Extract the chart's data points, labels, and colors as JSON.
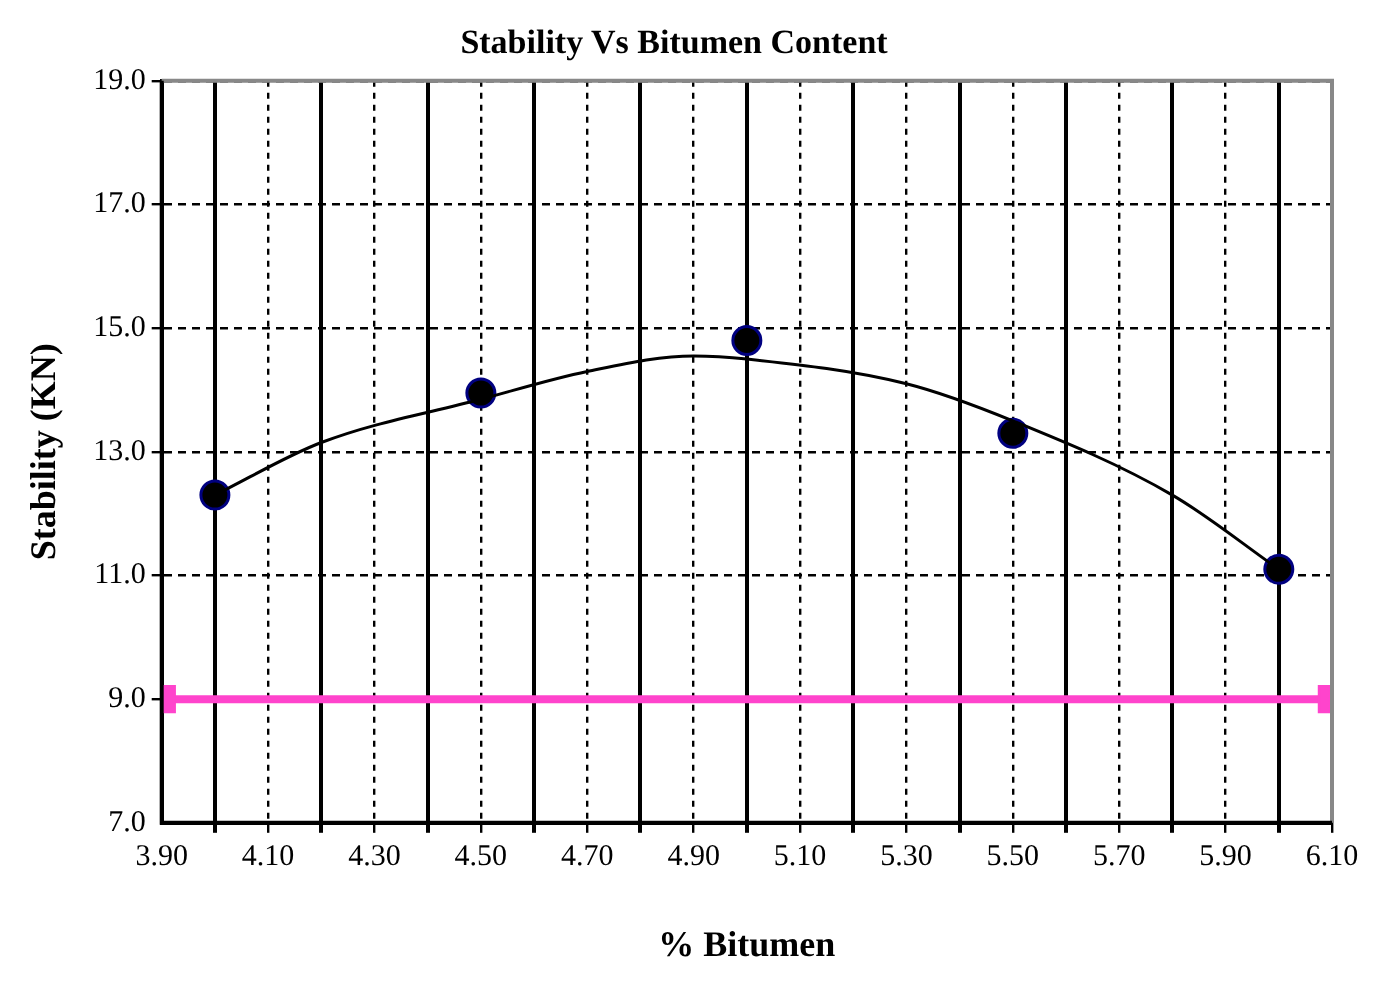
{
  "chart_data": {
    "type": "scatter",
    "title": "Stability Vs Bitumen Content",
    "xlabel": "% Bitumen",
    "ylabel": "Stability (KN)",
    "xlim": [
      3.9,
      6.1
    ],
    "xticks": [
      {
        "value": 3.9,
        "label": "3.90"
      },
      {
        "value": 4.0,
        "label": null
      },
      {
        "value": 4.1,
        "label": "4.10"
      },
      {
        "value": 4.2,
        "label": null
      },
      {
        "value": 4.3,
        "label": "4.30"
      },
      {
        "value": 4.4,
        "label": null
      },
      {
        "value": 4.5,
        "label": "4.50"
      },
      {
        "value": 4.6,
        "label": null
      },
      {
        "value": 4.7,
        "label": "4.70"
      },
      {
        "value": 4.8,
        "label": null
      },
      {
        "value": 4.9,
        "label": "4.90"
      },
      {
        "value": 5.0,
        "label": null
      },
      {
        "value": 5.1,
        "label": "5.10"
      },
      {
        "value": 5.2,
        "label": null
      },
      {
        "value": 5.3,
        "label": "5.30"
      },
      {
        "value": 5.4,
        "label": null
      },
      {
        "value": 5.5,
        "label": "5.50"
      },
      {
        "value": 5.6,
        "label": null
      },
      {
        "value": 5.7,
        "label": "5.70"
      },
      {
        "value": 5.8,
        "label": null
      },
      {
        "value": 5.9,
        "label": "5.90"
      },
      {
        "value": 6.0,
        "label": null
      },
      {
        "value": 6.1,
        "label": "6.10"
      }
    ],
    "ylim": [
      7,
      19
    ],
    "yticks": [
      {
        "value": 7,
        "label": "7.0"
      },
      {
        "value": 9,
        "label": "9.0"
      },
      {
        "value": 11,
        "label": "11.0"
      },
      {
        "value": 13,
        "label": "13.0"
      },
      {
        "value": 15,
        "label": "15.0"
      },
      {
        "value": 17,
        "label": "17.0"
      },
      {
        "value": 19,
        "label": "19.0"
      }
    ],
    "grid": true,
    "legend": false,
    "series": [
      {
        "type": "line",
        "color": "#ff44cc",
        "marker": "square",
        "x": [
          3.9,
          6.1
        ],
        "values": [
          9,
          9
        ]
      },
      {
        "type": "line",
        "color": "#000000",
        "marker": "none",
        "x": [
          4.0,
          4.2,
          4.5,
          4.7,
          4.9,
          5.0,
          5.3,
          5.5,
          5.8,
          6.0
        ],
        "values": [
          12.3,
          13.15,
          13.85,
          14.3,
          14.55,
          14.5,
          14.1,
          13.5,
          12.3,
          11.1
        ]
      },
      {
        "type": "scatter",
        "color": "#000000",
        "marker": "circle",
        "x": [
          4.0,
          4.5,
          5.0,
          5.5,
          6.0
        ],
        "values": [
          12.3,
          13.95,
          14.8,
          13.3,
          11.1
        ]
      }
    ]
  }
}
